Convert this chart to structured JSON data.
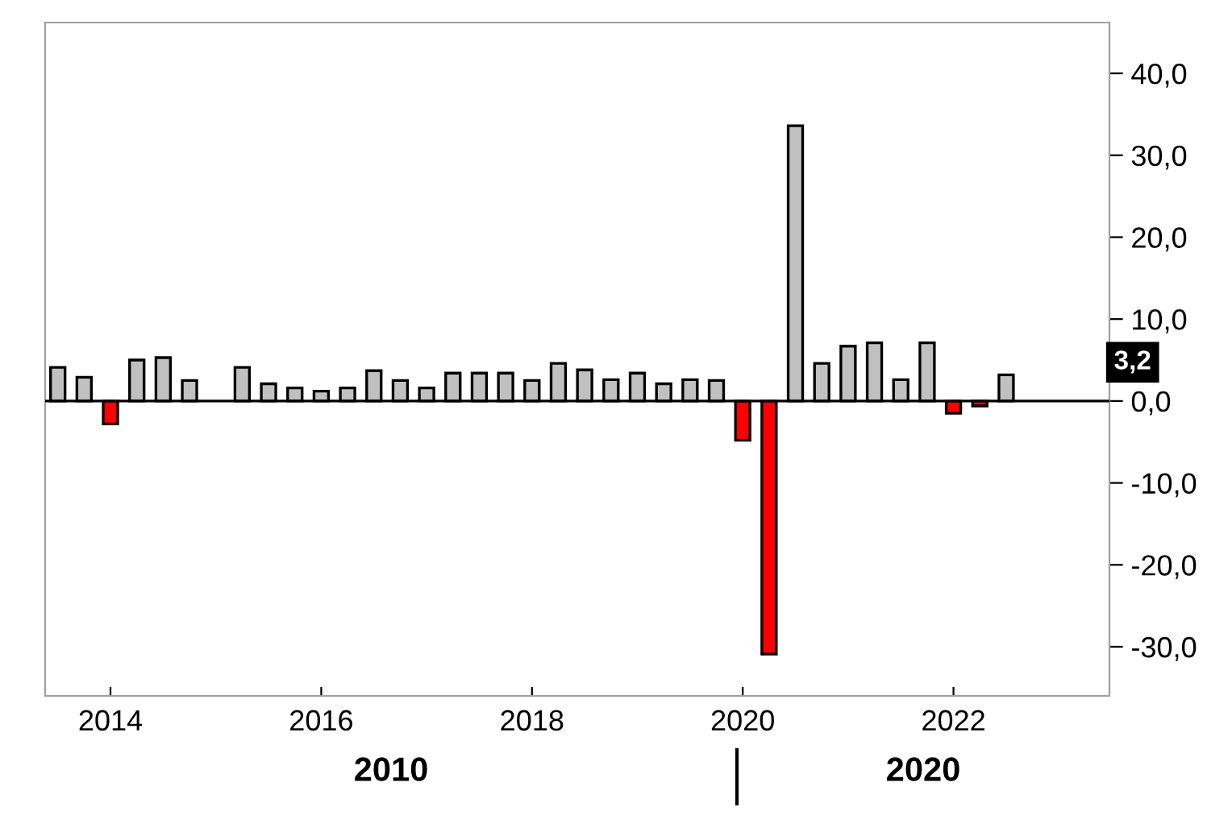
{
  "chart_data": {
    "type": "bar",
    "x": [
      2013.5,
      2013.75,
      2014.0,
      2014.25,
      2014.5,
      2014.75,
      2015.0,
      2015.25,
      2015.5,
      2015.75,
      2016.0,
      2016.25,
      2016.5,
      2016.75,
      2017.0,
      2017.25,
      2017.5,
      2017.75,
      2018.0,
      2018.25,
      2018.5,
      2018.75,
      2019.0,
      2019.25,
      2019.5,
      2019.75,
      2020.0,
      2020.25,
      2020.5,
      2020.75,
      2021.0,
      2021.25,
      2021.5,
      2021.75,
      2022.0,
      2022.25,
      2022.5
    ],
    "values": [
      4.1,
      2.9,
      -2.8,
      5.0,
      5.3,
      2.5,
      null,
      4.1,
      2.1,
      1.6,
      1.2,
      1.6,
      3.7,
      2.5,
      1.6,
      3.4,
      3.4,
      3.4,
      2.5,
      4.6,
      3.8,
      2.6,
      3.4,
      2.1,
      2.6,
      2.5,
      -4.8,
      -30.9,
      33.6,
      4.6,
      6.7,
      7.1,
      2.6,
      7.1,
      -1.5,
      -0.6,
      3.2
    ],
    "colors": [
      "#c0c0c0",
      "#c0c0c0",
      "#ff0000",
      "#c0c0c0",
      "#c0c0c0",
      "#c0c0c0",
      "#c0c0c0",
      "#c0c0c0",
      "#c0c0c0",
      "#c0c0c0",
      "#c0c0c0",
      "#c0c0c0",
      "#c0c0c0",
      "#c0c0c0",
      "#c0c0c0",
      "#c0c0c0",
      "#c0c0c0",
      "#c0c0c0",
      "#c0c0c0",
      "#c0c0c0",
      "#c0c0c0",
      "#c0c0c0",
      "#c0c0c0",
      "#c0c0c0",
      "#c0c0c0",
      "#c0c0c0",
      "#ff0000",
      "#ff0000",
      "#c0c0c0",
      "#c0c0c0",
      "#c0c0c0",
      "#c0c0c0",
      "#c0c0c0",
      "#c0c0c0",
      "#ff0000",
      "#ff0000",
      "#c0c0c0"
    ],
    "xlim": [
      2013.38,
      2023.48
    ],
    "xticks": [
      2014,
      2016,
      2018,
      2020,
      2022
    ],
    "ylim": [
      -36.0,
      46.2
    ],
    "yticks": [
      {
        "value": 40,
        "label": "40,0"
      },
      {
        "value": 30,
        "label": "30,0"
      },
      {
        "value": 20,
        "label": "20,0"
      },
      {
        "value": 10,
        "label": "10,0"
      },
      {
        "value": 0,
        "label": "0,0"
      },
      {
        "value": -10,
        "label": "-10,0"
      },
      {
        "value": -20,
        "label": "-20,0"
      },
      {
        "value": -30,
        "label": "-30,0"
      }
    ],
    "ref_lines": [
      {
        "axis": "y",
        "value": 0,
        "color": "#000000"
      }
    ],
    "annotations": [
      "3,2",
      "2010",
      "2020"
    ],
    "grid": false,
    "legend": false
  }
}
